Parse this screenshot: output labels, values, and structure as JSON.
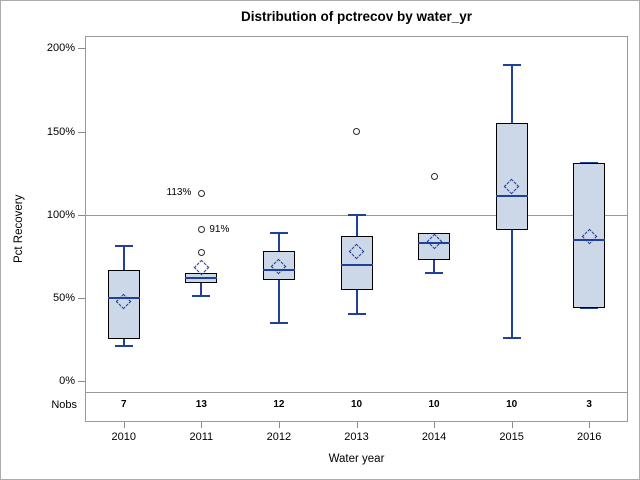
{
  "title": "Distribution of pctrecov by water_yr",
  "y_axis": {
    "title": "Pct Recovery",
    "tick_labels": [
      "0%",
      "50%",
      "100%",
      "150%",
      "200%"
    ],
    "tick_values": [
      0,
      50,
      100,
      150,
      200
    ]
  },
  "x_axis": {
    "title": "Water year"
  },
  "nobs_label": "Nobs",
  "reference_line_value": 100,
  "colors": {
    "box_fill": "#ccd7e8",
    "box_border": "#000000",
    "blue": "#21409a",
    "outlier_stroke": "#2b2b2b",
    "frame_gray": "#9a9a9a"
  },
  "chart_data": {
    "type": "boxplot",
    "title": "Distribution of pctrecov by water_yr",
    "xlabel": "Water year",
    "ylabel": "Pct Recovery",
    "ylim": [
      0,
      200
    ],
    "y_unit": "%",
    "grid": false,
    "reference_line": 100,
    "categories": [
      "2010",
      "2011",
      "2012",
      "2013",
      "2014",
      "2015",
      "2016"
    ],
    "nobs": [
      7,
      13,
      12,
      10,
      10,
      10,
      3
    ],
    "series": [
      {
        "category": "2010",
        "whisker_low": 21,
        "q1": 25,
        "median": 50,
        "mean": 48,
        "q3": 67,
        "whisker_high": 81,
        "outliers": []
      },
      {
        "category": "2011",
        "whisker_low": 51,
        "q1": 59,
        "median": 62,
        "mean": 68,
        "q3": 65,
        "whisker_high": null,
        "outliers": [
          {
            "value": 77
          },
          {
            "value": 91,
            "label": "91%",
            "label_side": "right"
          },
          {
            "value": 113,
            "label": "113%",
            "label_side": "left"
          }
        ]
      },
      {
        "category": "2012",
        "whisker_low": 35,
        "q1": 61,
        "median": 67,
        "mean": 69,
        "q3": 78,
        "whisker_high": 89,
        "outliers": []
      },
      {
        "category": "2013",
        "whisker_low": 40,
        "q1": 55,
        "median": 70,
        "mean": 78,
        "q3": 87,
        "whisker_high": 100,
        "outliers": [
          {
            "value": 150
          }
        ]
      },
      {
        "category": "2014",
        "whisker_low": 65,
        "q1": 73,
        "median": 83,
        "mean": 84,
        "q3": 89,
        "whisker_high": null,
        "outliers": [
          {
            "value": 123
          }
        ]
      },
      {
        "category": "2015",
        "whisker_low": 26,
        "q1": 91,
        "median": 111,
        "mean": 117,
        "q3": 155,
        "whisker_high": 190,
        "outliers": []
      },
      {
        "category": "2016",
        "whisker_low": 44,
        "q1": 44,
        "median": 85,
        "mean": 87,
        "q3": 131,
        "whisker_high": 131,
        "outliers": []
      }
    ]
  }
}
